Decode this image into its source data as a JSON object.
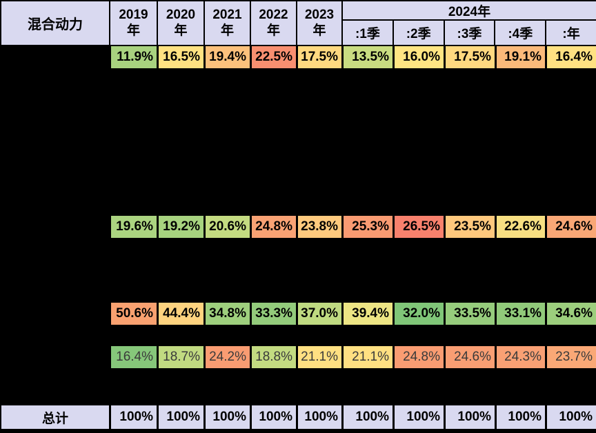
{
  "table": {
    "corner_label": "混合动力",
    "year_headers": [
      "2019年",
      "2020年",
      "2021年",
      "2022年",
      "2023年"
    ],
    "group_2024": {
      "label": "2024年",
      "sub_headers": [
        ":1季",
        ":2季",
        ":3季",
        ":4季",
        ":年"
      ]
    },
    "rows": [
      {
        "values": [
          "11.9%",
          "16.5%",
          "19.4%",
          "22.5%",
          "17.5%",
          "13.5%",
          "16.0%",
          "17.5%",
          "19.1%",
          "16.4%"
        ],
        "colors": [
          "#A8D27F",
          "#FFE282",
          "#FCC17C",
          "#F88F70",
          "#FFD980",
          "#C9DC81",
          "#FFE583",
          "#FFD980",
          "#FBBA7A",
          "#FFE182"
        ],
        "style": "bold"
      },
      {
        "values": [
          "19.6%",
          "19.2%",
          "20.6%",
          "24.8%",
          "23.8%",
          "25.3%",
          "26.5%",
          "23.5%",
          "22.6%",
          "24.6%"
        ],
        "colors": [
          "#ABD480",
          "#A7D37F",
          "#C4DB81",
          "#F9A274",
          "#FFCA7E",
          "#F99B72",
          "#F8816D",
          "#FEC87D",
          "#F7DF82",
          "#F9A776"
        ],
        "style": "bold"
      },
      {
        "values": [
          "50.6%",
          "44.4%",
          "34.8%",
          "33.3%",
          "37.0%",
          "39.4%",
          "32.0%",
          "33.5%",
          "33.1%",
          "34.6%"
        ],
        "colors": [
          "#F9A170",
          "#FED37F",
          "#9ECF7D",
          "#93CB7B",
          "#BFDA81",
          "#EDE584",
          "#80C678",
          "#96CC7C",
          "#91CA7A",
          "#9CCE7D"
        ],
        "style": "bold"
      },
      {
        "values": [
          "16.4%",
          "18.7%",
          "24.2%",
          "18.8%",
          "21.1%",
          "21.1%",
          "24.8%",
          "24.6%",
          "24.3%",
          "23.7%"
        ],
        "colors": [
          "#86C77A",
          "#C1DA81",
          "#F99C72",
          "#C3DB81",
          "#FFE082",
          "#FFE082",
          "#F99C72",
          "#F99E73",
          "#F9A074",
          "#FAA876"
        ],
        "style": "muted"
      }
    ],
    "total_row": {
      "label": "总计",
      "values": [
        "100%",
        "100%",
        "100%",
        "100%",
        "100%",
        "100%",
        "100%",
        "100%",
        "100%",
        "100%"
      ]
    },
    "colors": {
      "header_bg": "#D9D9F0",
      "border": "#000000",
      "bold_text": "#000000",
      "muted_text": "#3A3A3A"
    }
  }
}
